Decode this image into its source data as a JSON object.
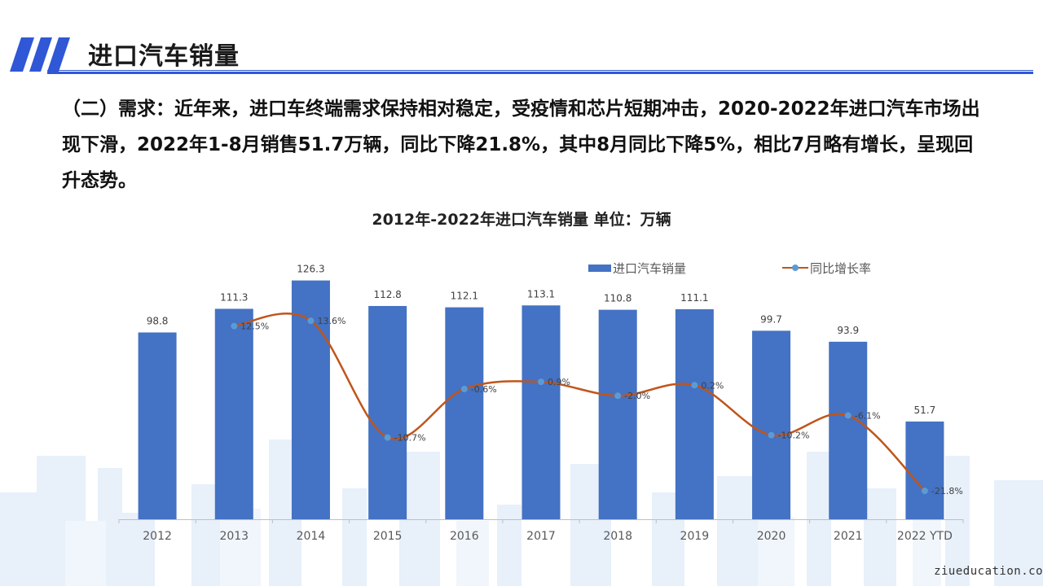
{
  "slide": {
    "title": "进口汽车销量",
    "body": "（二）需求：近年来，进口车终端需求保持相对稳定，受疫情和芯片短期冲击，2020-2022年进口汽车市场出现下滑，2022年1-8月销售51.7万辆，同比下降21.8%，其中8月同比下降5%，相比7月略有增长，呈现回升态势。",
    "watermark": "ziueducation.co",
    "accent_color": "#2f57d6"
  },
  "chart_data": {
    "type": "bar+line",
    "title": "2012年-2022年进口汽车销量  单位：万辆",
    "categories": [
      "2012",
      "2013",
      "2014",
      "2015",
      "2016",
      "2017",
      "2018",
      "2019",
      "2020",
      "2021",
      "2022 YTD"
    ],
    "series": [
      {
        "name": "进口汽车销量",
        "type": "bar",
        "color": "#4472c4",
        "values": [
          98.8,
          111.3,
          126.3,
          112.8,
          112.1,
          113.1,
          110.8,
          111.1,
          99.7,
          93.9,
          51.7
        ],
        "labels": [
          "98.8",
          "111.3",
          "126.3",
          "112.8",
          "112.1",
          "113.1",
          "110.8",
          "111.1",
          "99.7",
          "93.9",
          "51.7"
        ]
      },
      {
        "name": "同比增长率",
        "type": "line",
        "smooth": true,
        "color": "#c0551b",
        "marker_color": "#5b9bd5",
        "values": [
          null,
          12.5,
          13.6,
          -10.7,
          -0.6,
          0.9,
          -2.0,
          0.2,
          -10.2,
          -6.1,
          -21.8
        ],
        "labels": [
          "",
          "12.5%",
          "13.6%",
          "-10.7%",
          "-0.6%",
          "0.9%",
          "-2.0%",
          "0.2%",
          "-10.2%",
          "-6.1%",
          "-21.8%"
        ]
      }
    ],
    "bar_axis_range": [
      0,
      130
    ],
    "line_axis_range": [
      -25,
      16
    ],
    "gridlines": false,
    "legend_position": "top-right"
  }
}
